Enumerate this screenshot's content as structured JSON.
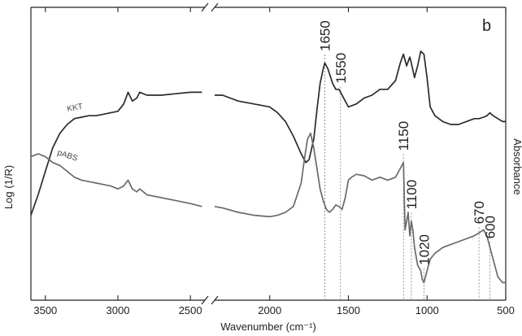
{
  "chart_data": {
    "type": "line",
    "panel_label": "b",
    "xlabel": "Wavenumber (cm⁻¹)",
    "ylabel_left": "Log (1/R)",
    "ylabel_right": "Absorbance",
    "x_axis": {
      "reversed": true,
      "broken": true,
      "segments": [
        {
          "range": [
            3600,
            2400
          ],
          "ticks": [
            3500,
            3000,
            2500
          ],
          "tick_labels": [
            "3500",
            "3000",
            "2500"
          ]
        },
        {
          "range": [
            2350,
            500
          ],
          "ticks": [
            2000,
            1500,
            1000,
            500
          ],
          "tick_labels": [
            "2000",
            "1500",
            "1000",
            "500"
          ]
        }
      ]
    },
    "y_axis": {
      "ticks_shown": false,
      "range": [
        0,
        100
      ]
    },
    "grid": false,
    "series": [
      {
        "name": "KKT",
        "color": "#2b2b2b",
        "segments": [
          {
            "x": [
              3600,
              3550,
              3500,
              3450,
              3400,
              3350,
              3300,
              3250,
              3200,
              3150,
              3100,
              3050,
              3000,
              2960,
              2930,
              2900,
              2870,
              2850,
              2800,
              2700,
              2600,
              2500,
              2420
            ],
            "y": [
              29,
              36,
              44,
              52,
              57,
              60,
              62,
              62.5,
              63,
              63,
              63.5,
              64,
              64.5,
              67,
              71,
              68,
              69,
              71,
              70,
              70,
              70.5,
              71,
              71
            ]
          },
          {
            "x": [
              2350,
              2300,
              2200,
              2100,
              2000,
              1950,
              1900,
              1850,
              1800,
              1770,
              1750,
              1720,
              1700,
              1680,
              1660,
              1650,
              1630,
              1600,
              1580,
              1560,
              1550,
              1520,
              1500,
              1450,
              1400,
              1350,
              1300,
              1250,
              1200,
              1170,
              1150,
              1130,
              1110,
              1100,
              1080,
              1060,
              1040,
              1020,
              1000,
              980,
              950,
              900,
              850,
              800,
              750,
              700,
              670,
              640,
              620,
              600,
              580,
              550,
              520,
              500
            ],
            "y": [
              70,
              70,
              68,
              67,
              66,
              64,
              61,
              56,
              50,
              47,
              48,
              55,
              65,
              74,
              79,
              81,
              79,
              74,
              72,
              72,
              71,
              68,
              66,
              67,
              69,
              70,
              72,
              72,
              75,
              81,
              84,
              80,
              83,
              81,
              76,
              80,
              85,
              84,
              76,
              66,
              63,
              61,
              60,
              60,
              61,
              62,
              62,
              62.5,
              63,
              64,
              63,
              62,
              61,
              61
            ]
          }
        ]
      },
      {
        "name": "pABS",
        "color": "#6a6a6a",
        "segments": [
          {
            "x": [
              3600,
              3550,
              3500,
              3450,
              3400,
              3350,
              3300,
              3250,
              3200,
              3150,
              3100,
              3050,
              3000,
              2960,
              2930,
              2900,
              2870,
              2850,
              2800,
              2700,
              2600,
              2500,
              2420
            ],
            "y": [
              49,
              50,
              49,
              47,
              46,
              44,
              42,
              41,
              40.5,
              40,
              39.5,
              39,
              38,
              39,
              41,
              38,
              37,
              38,
              36,
              35,
              34,
              33,
              32
            ]
          },
          {
            "x": [
              2350,
              2300,
              2200,
              2100,
              2000,
              1950,
              1900,
              1850,
              1800,
              1780,
              1760,
              1740,
              1720,
              1700,
              1680,
              1660,
              1640,
              1620,
              1600,
              1580,
              1560,
              1540,
              1520,
              1500,
              1480,
              1450,
              1400,
              1350,
              1300,
              1250,
              1200,
              1180,
              1160,
              1150,
              1140,
              1130,
              1120,
              1110,
              1100,
              1090,
              1080,
              1060,
              1040,
              1030,
              1020,
              1010,
              1000,
              980,
              950,
              900,
              850,
              800,
              750,
              700,
              670,
              640,
              620,
              600,
              580,
              550,
              520,
              500
            ],
            "y": [
              32,
              31.5,
              30,
              29,
              28.5,
              29,
              30,
              32,
              40,
              48,
              55,
              57,
              52,
              45,
              38,
              34,
              31,
              30,
              31,
              32.5,
              32,
              31,
              35,
              41,
              42,
              43,
              42.5,
              41,
              42,
              41,
              42,
              44,
              46,
              47,
              24,
              27,
              30,
              22,
              27,
              24,
              18,
              12,
              10,
              7,
              6,
              8,
              10,
              14,
              16,
              18,
              19,
              20,
              21,
              22,
              23,
              24,
              22,
              18,
              14,
              8,
              6,
              6
            ]
          }
        ]
      }
    ],
    "annotations": [
      {
        "text": "1650",
        "x": 1650,
        "y_label": 85
      },
      {
        "text": "1550",
        "x": 1550,
        "y_label": 74
      },
      {
        "text": "1150",
        "x": 1150,
        "y_label": 51
      },
      {
        "text": "1100",
        "x": 1100,
        "y_label": 31
      },
      {
        "text": "1020",
        "x": 1020,
        "y_label": 12
      },
      {
        "text": "670",
        "x": 670,
        "y_label": 26
      },
      {
        "text": "600",
        "x": 600,
        "y_label": 21
      }
    ]
  }
}
